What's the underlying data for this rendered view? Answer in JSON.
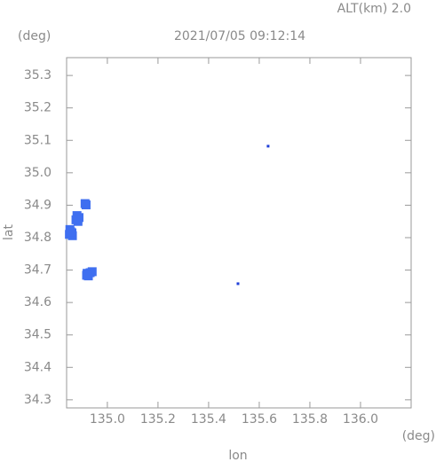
{
  "chart_data": {
    "type": "scatter",
    "title": "2021/07/05 09:12:14",
    "annotation": "ALT(km) 2.0",
    "xlabel": "lon",
    "ylabel": "lat",
    "x_unit": "(deg)",
    "y_unit": "(deg)",
    "xlim": [
      134.839,
      136.2
    ],
    "ylim": [
      34.275,
      35.355
    ],
    "xticks": [
      {
        "value": 135,
        "label": "135.0"
      },
      135.2,
      135.4,
      135.6,
      135.8,
      {
        "value": 136,
        "label": "136.0"
      }
    ],
    "yticks": [
      34.3,
      34.4,
      34.5,
      34.6,
      34.7,
      34.8,
      34.9,
      {
        "value": 35,
        "label": "35.0"
      },
      35.1,
      35.2,
      35.3
    ],
    "series": [
      {
        "color": "#3f6ff0",
        "x": [
          134.916,
          134.912,
          134.88,
          134.888,
          134.876,
          134.884,
          134.852,
          134.86,
          134.85,
          134.862,
          134.855,
          134.92,
          134.932,
          134.925,
          134.94,
          134.918
        ],
        "values": [
          34.901,
          34.905,
          34.868,
          34.862,
          34.855,
          34.85,
          34.825,
          34.815,
          34.81,
          34.806,
          34.818,
          34.69,
          34.692,
          34.682,
          34.695,
          34.684
        ]
      },
      {
        "color": "#2040d8",
        "x": [
          135.635,
          135.516
        ],
        "values": [
          35.082,
          34.658
        ]
      }
    ]
  }
}
